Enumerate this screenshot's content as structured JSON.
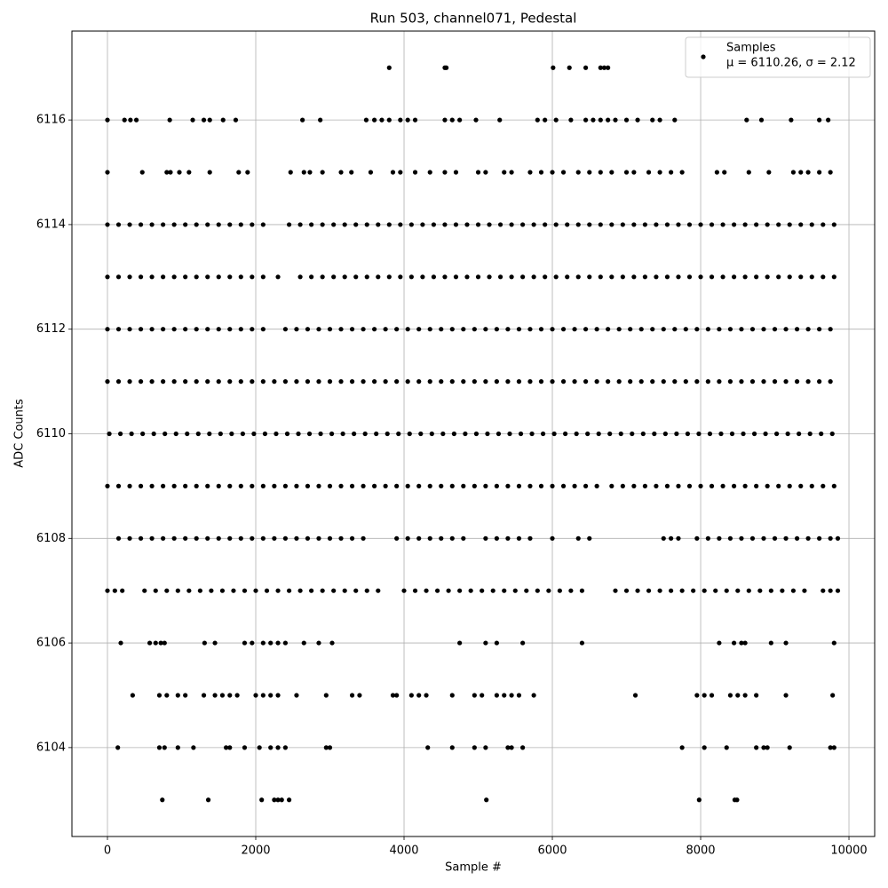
{
  "chart_data": {
    "type": "scatter",
    "title": "Run 503, channel071, Pedestal",
    "xlabel": "Sample #",
    "ylabel": "ADC Counts",
    "legend": {
      "name": "Samples",
      "label": "μ = 6110.26, σ = 2.12",
      "loc": "upper right"
    },
    "color": "#000000",
    "grid": true,
    "xlim": [
      -479,
      10347
    ],
    "xticks": [
      0,
      2000,
      4000,
      6000,
      8000,
      10000
    ],
    "ylim": [
      6102.3,
      6117.7
    ],
    "yticks": [
      6104,
      6106,
      6108,
      6110,
      6112,
      6114,
      6116
    ],
    "x": [
      3800,
      4550,
      4570,
      6010,
      6230,
      6450,
      6650,
      6700,
      6750,
      0,
      230,
      310,
      390,
      840,
      1150,
      1300,
      1380,
      1560,
      1730,
      2630,
      2870,
      3490,
      3600,
      3700,
      3800,
      3950,
      4050,
      4150,
      4550,
      4650,
      4750,
      4970,
      5290,
      5800,
      5900,
      6050,
      6250,
      6450,
      6550,
      6650,
      6750,
      6850,
      7000,
      7150,
      7350,
      7450,
      7650,
      8620,
      8820,
      9220,
      9600,
      9720,
      0,
      470,
      800,
      850,
      970,
      1100,
      1380,
      1770,
      1890,
      2470,
      2650,
      2730,
      2900,
      3150,
      3290,
      3550,
      3850,
      3950,
      4150,
      4350,
      4550,
      4700,
      5000,
      5100,
      5350,
      5450,
      5700,
      5850,
      6000,
      6150,
      6350,
      6500,
      6650,
      6800,
      7000,
      7100,
      7300,
      7450,
      7600,
      7750,
      8220,
      8320,
      8650,
      8920,
      9250,
      9350,
      9450,
      9600,
      9750,
      0,
      150,
      300,
      450,
      600,
      750,
      900,
      1050,
      1200,
      1350,
      1500,
      1650,
      1800,
      1950,
      2100,
      2450,
      2600,
      2750,
      2900,
      3050,
      3200,
      3350,
      3500,
      3650,
      3800,
      3950,
      4100,
      4250,
      4400,
      4550,
      4700,
      4850,
      5000,
      5150,
      5300,
      5450,
      5600,
      5750,
      5900,
      6050,
      6200,
      6350,
      6500,
      6650,
      6800,
      6950,
      7100,
      7250,
      7400,
      7550,
      7700,
      7850,
      8000,
      8150,
      8300,
      8450,
      8600,
      8750,
      8900,
      9050,
      9200,
      9350,
      9500,
      9650,
      9800,
      0,
      150,
      300,
      450,
      600,
      750,
      900,
      1050,
      1200,
      1350,
      1500,
      1650,
      1800,
      1950,
      2100,
      2300,
      2600,
      2750,
      2900,
      3050,
      3200,
      3350,
      3500,
      3650,
      3800,
      3950,
      4100,
      4250,
      4400,
      4550,
      4700,
      4850,
      5000,
      5150,
      5300,
      5450,
      5600,
      5750,
      5900,
      6050,
      6200,
      6350,
      6500,
      6650,
      6800,
      6950,
      7100,
      7250,
      7400,
      7550,
      7700,
      7850,
      8000,
      8150,
      8300,
      8450,
      8600,
      8750,
      8900,
      9050,
      9200,
      9350,
      9500,
      9650,
      9800,
      0,
      150,
      300,
      450,
      600,
      750,
      900,
      1050,
      1200,
      1350,
      1500,
      1650,
      1800,
      1950,
      2100,
      2400,
      2550,
      2700,
      2850,
      3000,
      3150,
      3300,
      3450,
      3600,
      3750,
      3900,
      4050,
      4200,
      4350,
      4500,
      4650,
      4800,
      4950,
      5100,
      5250,
      5400,
      5550,
      5700,
      5850,
      6000,
      6150,
      6300,
      6450,
      6600,
      6750,
      6900,
      7050,
      7200,
      7350,
      7500,
      7650,
      7800,
      7950,
      8100,
      8250,
      8400,
      8550,
      8700,
      8850,
      9000,
      9150,
      9300,
      9450,
      9600,
      9750,
      0,
      150,
      300,
      450,
      600,
      750,
      900,
      1050,
      1200,
      1350,
      1500,
      1650,
      1800,
      1950,
      2100,
      2250,
      2400,
      2550,
      2700,
      2850,
      3000,
      3150,
      3300,
      3450,
      3600,
      3750,
      3900,
      4050,
      4200,
      4350,
      4500,
      4650,
      4800,
      4950,
      5100,
      5250,
      5400,
      5550,
      5700,
      5850,
      6000,
      6150,
      6300,
      6450,
      6600,
      6750,
      6900,
      7050,
      7200,
      7350,
      7500,
      7650,
      7800,
      7950,
      8100,
      8250,
      8400,
      8550,
      8700,
      8850,
      9000,
      9150,
      9300,
      9450,
      9600,
      9750,
      25,
      175,
      325,
      475,
      625,
      775,
      925,
      1075,
      1225,
      1375,
      1525,
      1675,
      1825,
      1975,
      2125,
      2275,
      2425,
      2575,
      2725,
      2875,
      3025,
      3175,
      3325,
      3475,
      3625,
      3775,
      3925,
      4075,
      4225,
      4375,
      4525,
      4675,
      4825,
      4975,
      5125,
      5275,
      5425,
      5575,
      5725,
      5875,
      6025,
      6175,
      6325,
      6475,
      6625,
      6775,
      6925,
      7075,
      7225,
      7375,
      7525,
      7675,
      7825,
      7975,
      8125,
      8275,
      8425,
      8575,
      8725,
      8875,
      9025,
      9175,
      9325,
      9475,
      9625,
      9775,
      0,
      150,
      300,
      450,
      600,
      750,
      900,
      1050,
      1200,
      1350,
      1500,
      1650,
      1800,
      1950,
      2100,
      2250,
      2400,
      2550,
      2700,
      2850,
      3000,
      3150,
      3300,
      3450,
      3600,
      3750,
      3900,
      4050,
      4200,
      4350,
      4500,
      4650,
      4800,
      4950,
      5100,
      5250,
      5400,
      5550,
      5700,
      5850,
      6000,
      6150,
      6300,
      6450,
      6600,
      6800,
      6950,
      7100,
      7250,
      7400,
      7550,
      7700,
      7850,
      8000,
      8150,
      8300,
      8450,
      8600,
      8750,
      8900,
      9050,
      9200,
      9350,
      9500,
      9650,
      9800,
      150,
      300,
      450,
      600,
      750,
      900,
      1050,
      1200,
      1350,
      1500,
      1650,
      1800,
      1950,
      2100,
      2250,
      2400,
      2550,
      2700,
      2850,
      3000,
      3150,
      3300,
      3450,
      3900,
      4050,
      4200,
      4350,
      4500,
      4650,
      4800,
      5100,
      5250,
      5400,
      5550,
      5700,
      6000,
      6350,
      6500,
      7500,
      7600,
      7700,
      7950,
      8100,
      8250,
      8400,
      8550,
      8700,
      8850,
      9000,
      9150,
      9300,
      9450,
      9600,
      9750,
      9850,
      0,
      100,
      200,
      500,
      650,
      800,
      950,
      1100,
      1250,
      1400,
      1550,
      1700,
      1850,
      2000,
      2150,
      2300,
      2450,
      2600,
      2750,
      2900,
      3050,
      3200,
      3350,
      3500,
      3650,
      4000,
      4150,
      4300,
      4450,
      4600,
      4750,
      4900,
      5050,
      5200,
      5350,
      5500,
      5650,
      5800,
      5950,
      6100,
      6250,
      6400,
      6850,
      7000,
      7150,
      7300,
      7450,
      7600,
      7750,
      7900,
      8050,
      8200,
      8350,
      8500,
      8650,
      8800,
      8950,
      9100,
      9250,
      9400,
      9650,
      9750,
      9850,
      180,
      570,
      650,
      720,
      770,
      1310,
      1450,
      1850,
      1950,
      2100,
      2200,
      2300,
      2400,
      2650,
      2850,
      3030,
      4750,
      5100,
      5250,
      5600,
      6400,
      8250,
      8450,
      8550,
      8600,
      8950,
      9150,
      9800,
      340,
      700,
      800,
      950,
      1050,
      1300,
      1450,
      1550,
      1650,
      1750,
      2000,
      2100,
      2200,
      2300,
      2550,
      2950,
      3300,
      3400,
      3850,
      3900,
      4100,
      4200,
      4300,
      4650,
      4950,
      5050,
      5250,
      5350,
      5450,
      5550,
      5750,
      7120,
      7950,
      8050,
      8150,
      8400,
      8500,
      8600,
      8750,
      9150,
      9780,
      140,
      700,
      770,
      950,
      1160,
      1600,
      1650,
      1850,
      2050,
      2200,
      2300,
      2400,
      2950,
      3000,
      4320,
      4650,
      4950,
      5100,
      5400,
      5450,
      5600,
      7750,
      8050,
      8350,
      8750,
      8850,
      8900,
      9200,
      9750,
      9800,
      740,
      1360,
      2080,
      2250,
      2300,
      2350,
      2450,
      5110,
      7980,
      8460,
      8490
    ],
    "y": [
      6117,
      6117,
      6117,
      6117,
      6117,
      6117,
      6117,
      6117,
      6117,
      6116,
      6116,
      6116,
      6116,
      6116,
      6116,
      6116,
      6116,
      6116,
      6116,
      6116,
      6116,
      6116,
      6116,
      6116,
      6116,
      6116,
      6116,
      6116,
      6116,
      6116,
      6116,
      6116,
      6116,
      6116,
      6116,
      6116,
      6116,
      6116,
      6116,
      6116,
      6116,
      6116,
      6116,
      6116,
      6116,
      6116,
      6116,
      6116,
      6116,
      6116,
      6116,
      6116,
      6115,
      6115,
      6115,
      6115,
      6115,
      6115,
      6115,
      6115,
      6115,
      6115,
      6115,
      6115,
      6115,
      6115,
      6115,
      6115,
      6115,
      6115,
      6115,
      6115,
      6115,
      6115,
      6115,
      6115,
      6115,
      6115,
      6115,
      6115,
      6115,
      6115,
      6115,
      6115,
      6115,
      6115,
      6115,
      6115,
      6115,
      6115,
      6115,
      6115,
      6115,
      6115,
      6115,
      6115,
      6115,
      6115,
      6115,
      6115,
      6115,
      6114,
      6114,
      6114,
      6114,
      6114,
      6114,
      6114,
      6114,
      6114,
      6114,
      6114,
      6114,
      6114,
      6114,
      6114,
      6114,
      6114,
      6114,
      6114,
      6114,
      6114,
      6114,
      6114,
      6114,
      6114,
      6114,
      6114,
      6114,
      6114,
      6114,
      6114,
      6114,
      6114,
      6114,
      6114,
      6114,
      6114,
      6114,
      6114,
      6114,
      6114,
      6114,
      6114,
      6114,
      6114,
      6114,
      6114,
      6114,
      6114,
      6114,
      6114,
      6114,
      6114,
      6114,
      6114,
      6114,
      6114,
      6114,
      6114,
      6114,
      6114,
      6114,
      6114,
      6114,
      6114,
      6113,
      6113,
      6113,
      6113,
      6113,
      6113,
      6113,
      6113,
      6113,
      6113,
      6113,
      6113,
      6113,
      6113,
      6113,
      6113,
      6113,
      6113,
      6113,
      6113,
      6113,
      6113,
      6113,
      6113,
      6113,
      6113,
      6113,
      6113,
      6113,
      6113,
      6113,
      6113,
      6113,
      6113,
      6113,
      6113,
      6113,
      6113,
      6113,
      6113,
      6113,
      6113,
      6113,
      6113,
      6113,
      6113,
      6113,
      6113,
      6113,
      6113,
      6113,
      6113,
      6113,
      6113,
      6113,
      6113,
      6113,
      6113,
      6113,
      6113,
      6113,
      6113,
      6113,
      6113,
      6113,
      6112,
      6112,
      6112,
      6112,
      6112,
      6112,
      6112,
      6112,
      6112,
      6112,
      6112,
      6112,
      6112,
      6112,
      6112,
      6112,
      6112,
      6112,
      6112,
      6112,
      6112,
      6112,
      6112,
      6112,
      6112,
      6112,
      6112,
      6112,
      6112,
      6112,
      6112,
      6112,
      6112,
      6112,
      6112,
      6112,
      6112,
      6112,
      6112,
      6112,
      6112,
      6112,
      6112,
      6112,
      6112,
      6112,
      6112,
      6112,
      6112,
      6112,
      6112,
      6112,
      6112,
      6112,
      6112,
      6112,
      6112,
      6112,
      6112,
      6112,
      6112,
      6112,
      6112,
      6112,
      6112,
      6111,
      6111,
      6111,
      6111,
      6111,
      6111,
      6111,
      6111,
      6111,
      6111,
      6111,
      6111,
      6111,
      6111,
      6111,
      6111,
      6111,
      6111,
      6111,
      6111,
      6111,
      6111,
      6111,
      6111,
      6111,
      6111,
      6111,
      6111,
      6111,
      6111,
      6111,
      6111,
      6111,
      6111,
      6111,
      6111,
      6111,
      6111,
      6111,
      6111,
      6111,
      6111,
      6111,
      6111,
      6111,
      6111,
      6111,
      6111,
      6111,
      6111,
      6111,
      6111,
      6111,
      6111,
      6111,
      6111,
      6111,
      6111,
      6111,
      6111,
      6111,
      6111,
      6111,
      6111,
      6111,
      6111,
      6110,
      6110,
      6110,
      6110,
      6110,
      6110,
      6110,
      6110,
      6110,
      6110,
      6110,
      6110,
      6110,
      6110,
      6110,
      6110,
      6110,
      6110,
      6110,
      6110,
      6110,
      6110,
      6110,
      6110,
      6110,
      6110,
      6110,
      6110,
      6110,
      6110,
      6110,
      6110,
      6110,
      6110,
      6110,
      6110,
      6110,
      6110,
      6110,
      6110,
      6110,
      6110,
      6110,
      6110,
      6110,
      6110,
      6110,
      6110,
      6110,
      6110,
      6110,
      6110,
      6110,
      6110,
      6110,
      6110,
      6110,
      6110,
      6110,
      6110,
      6110,
      6110,
      6110,
      6110,
      6110,
      6110,
      6109,
      6109,
      6109,
      6109,
      6109,
      6109,
      6109,
      6109,
      6109,
      6109,
      6109,
      6109,
      6109,
      6109,
      6109,
      6109,
      6109,
      6109,
      6109,
      6109,
      6109,
      6109,
      6109,
      6109,
      6109,
      6109,
      6109,
      6109,
      6109,
      6109,
      6109,
      6109,
      6109,
      6109,
      6109,
      6109,
      6109,
      6109,
      6109,
      6109,
      6109,
      6109,
      6109,
      6109,
      6109,
      6109,
      6109,
      6109,
      6109,
      6109,
      6109,
      6109,
      6109,
      6109,
      6109,
      6109,
      6109,
      6109,
      6109,
      6109,
      6109,
      6109,
      6109,
      6109,
      6109,
      6109,
      6108,
      6108,
      6108,
      6108,
      6108,
      6108,
      6108,
      6108,
      6108,
      6108,
      6108,
      6108,
      6108,
      6108,
      6108,
      6108,
      6108,
      6108,
      6108,
      6108,
      6108,
      6108,
      6108,
      6108,
      6108,
      6108,
      6108,
      6108,
      6108,
      6108,
      6108,
      6108,
      6108,
      6108,
      6108,
      6108,
      6108,
      6108,
      6108,
      6108,
      6108,
      6108,
      6108,
      6108,
      6108,
      6108,
      6108,
      6108,
      6108,
      6108,
      6108,
      6108,
      6108,
      6108,
      6108,
      6107,
      6107,
      6107,
      6107,
      6107,
      6107,
      6107,
      6107,
      6107,
      6107,
      6107,
      6107,
      6107,
      6107,
      6107,
      6107,
      6107,
      6107,
      6107,
      6107,
      6107,
      6107,
      6107,
      6107,
      6107,
      6107,
      6107,
      6107,
      6107,
      6107,
      6107,
      6107,
      6107,
      6107,
      6107,
      6107,
      6107,
      6107,
      6107,
      6107,
      6107,
      6107,
      6107,
      6107,
      6107,
      6107,
      6107,
      6107,
      6107,
      6107,
      6107,
      6107,
      6107,
      6107,
      6107,
      6107,
      6107,
      6107,
      6107,
      6107,
      6107,
      6107,
      6107,
      6106,
      6106,
      6106,
      6106,
      6106,
      6106,
      6106,
      6106,
      6106,
      6106,
      6106,
      6106,
      6106,
      6106,
      6106,
      6106,
      6106,
      6106,
      6106,
      6106,
      6106,
      6106,
      6106,
      6106,
      6106,
      6106,
      6106,
      6106,
      6105,
      6105,
      6105,
      6105,
      6105,
      6105,
      6105,
      6105,
      6105,
      6105,
      6105,
      6105,
      6105,
      6105,
      6105,
      6105,
      6105,
      6105,
      6105,
      6105,
      6105,
      6105,
      6105,
      6105,
      6105,
      6105,
      6105,
      6105,
      6105,
      6105,
      6105,
      6105,
      6105,
      6105,
      6105,
      6105,
      6105,
      6105,
      6105,
      6105,
      6105,
      6104,
      6104,
      6104,
      6104,
      6104,
      6104,
      6104,
      6104,
      6104,
      6104,
      6104,
      6104,
      6104,
      6104,
      6104,
      6104,
      6104,
      6104,
      6104,
      6104,
      6104,
      6104,
      6104,
      6104,
      6104,
      6104,
      6104,
      6104,
      6104,
      6104,
      6103,
      6103,
      6103,
      6103,
      6103,
      6103,
      6103,
      6103,
      6103,
      6103,
      6103
    ]
  }
}
